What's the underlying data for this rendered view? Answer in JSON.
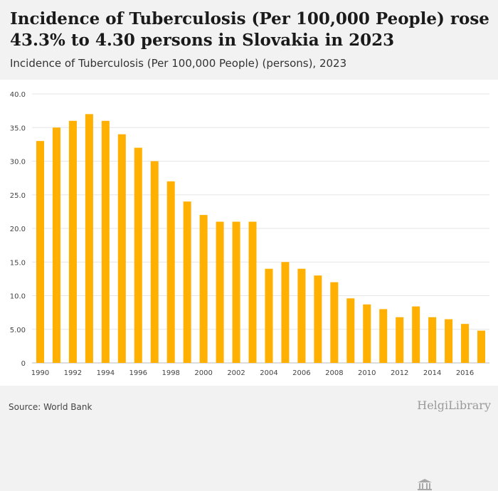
{
  "header": {
    "title": "Incidence of Tuberculosis (Per 100,000 People) rose 43.3% to 4.30 persons in Slovakia in 2023",
    "subtitle": "Incidence of Tuberculosis (Per 100,000 People) (persons), 2023"
  },
  "footer": {
    "source": "Source: World Bank",
    "brand": "HelgiLibrary"
  },
  "colors": {
    "bar": "#FFB000",
    "grid": "#e6e6e6",
    "axis_text": "#444444"
  },
  "chart_data": {
    "type": "bar",
    "categories": [
      "1990",
      "1991",
      "1992",
      "1993",
      "1994",
      "1995",
      "1996",
      "1997",
      "1998",
      "1999",
      "2000",
      "2001",
      "2002",
      "2003",
      "2004",
      "2005",
      "2006",
      "2007",
      "2008",
      "2009",
      "2010",
      "2011",
      "2012",
      "2013",
      "2014",
      "2015",
      "2016",
      "2017"
    ],
    "tick_labels": [
      "1990",
      "1992",
      "1994",
      "1996",
      "1998",
      "2000",
      "2002",
      "2004",
      "2006",
      "2008",
      "2010",
      "2012",
      "2014",
      "2016"
    ],
    "values": [
      33,
      35,
      36,
      37,
      36,
      34,
      32,
      30,
      27,
      24,
      22,
      21,
      21,
      21,
      14,
      15,
      14,
      13,
      12,
      9.6,
      8.7,
      8.0,
      6.8,
      8.4,
      6.8,
      6.5,
      5.8,
      4.8
    ],
    "ylim": [
      0,
      40
    ],
    "yticks": [
      0,
      5,
      10,
      15,
      20,
      25,
      30,
      35,
      40
    ],
    "ytick_labels": [
      "0",
      "5.00",
      "10.0",
      "15.0",
      "20.0",
      "25.0",
      "30.0",
      "35.0",
      "40.0"
    ],
    "grid": true,
    "legend": "none"
  }
}
